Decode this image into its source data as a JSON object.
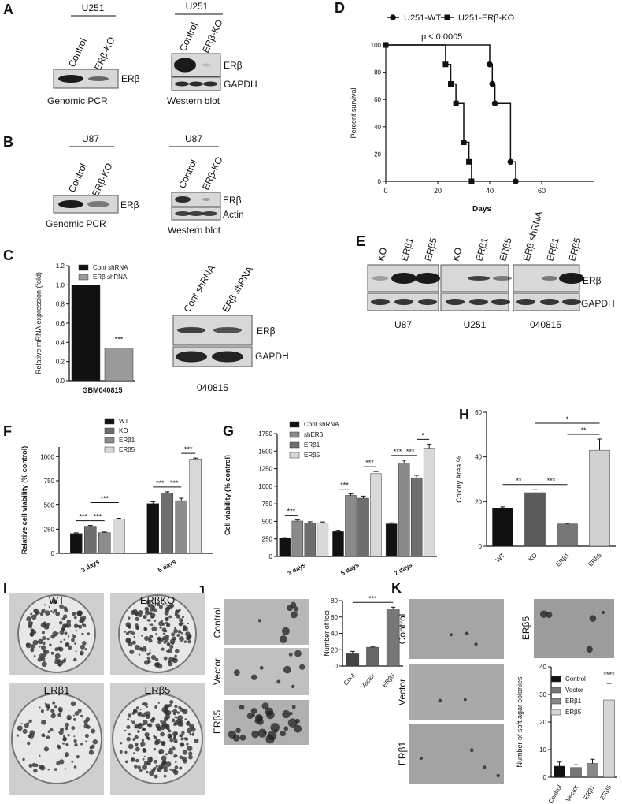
{
  "panels": [
    "A",
    "B",
    "C",
    "D",
    "E",
    "F",
    "G",
    "H",
    "I",
    "J",
    "K"
  ],
  "panel_labels": {
    "A": [
      "U251",
      "Control",
      "ERβ-KO",
      "ERβ",
      "Genomic PCR",
      "U251",
      "Control",
      "ERβ-KO",
      "ERβ",
      "GAPDH",
      "Western blot"
    ],
    "B": [
      "U87",
      "Control",
      "ERβ-KO",
      "ERβ",
      "Genomic PCR",
      "U87",
      "Control",
      "ERβ-KO",
      "ERβ",
      "Actin",
      "Western blot"
    ],
    "C": [
      "Cont shRNA",
      "ERβ shRNA",
      "ERβ",
      "GAPDH",
      "040815"
    ],
    "E": [
      "KO",
      "ERβ1",
      "ERβ5",
      "KO",
      "ERβ1",
      "ERβ5",
      "ERβ shRNA",
      "ERβ1",
      "ERβ5",
      "ERβ",
      "GAPDH",
      "U87",
      "U251",
      "040815"
    ],
    "I": [
      "WT",
      "ERβKO",
      "ERβ1",
      "ERβ5"
    ],
    "J": [
      "Control",
      "Vector",
      "ERβ5"
    ],
    "K": [
      "Control",
      "Vector",
      "ERβ1",
      "ERβ5"
    ]
  },
  "chart_data": [
    {
      "type": "bar",
      "categories": [
        null
      ],
      "xlabel": "GBM040815",
      "ylabel": "Relative mRNA expression (fold)",
      "ylim": [
        0,
        1.2
      ],
      "yticks": [
        {
          "value": 0,
          "label": "0.0"
        },
        {
          "value": 0.2,
          "label": "0.2"
        },
        {
          "value": 0.4,
          "label": "0.4"
        },
        {
          "value": 0.6,
          "label": "0.6"
        },
        {
          "value": 0.8,
          "label": "0.8"
        },
        {
          "value": 1.0,
          "label": "1.0"
        },
        {
          "value": 1.2,
          "label": "1.2"
        }
      ],
      "series": [
        {
          "name": "Cont shRNA",
          "color": "#111111",
          "values": [
            1.0
          ]
        },
        {
          "name": "ERβ shRNA",
          "color": "#9a9a9a",
          "values": [
            0.34
          ]
        }
      ],
      "significance": [
        "***"
      ]
    },
    {
      "type": "line",
      "step": true,
      "xlabel": "Days",
      "ylabel": "Percent survival",
      "annotation": "p < 0.0005",
      "xlim": [
        0,
        80
      ],
      "xticks": [
        0,
        20,
        40,
        60
      ],
      "ylim": [
        0,
        100
      ],
      "yticks": [
        0,
        20,
        40,
        60,
        80,
        100
      ],
      "series": [
        {
          "name": "U251-WT",
          "color": "#111111",
          "marker": "circle",
          "x": [
            0,
            40,
            41,
            42,
            48,
            50
          ],
          "values": [
            100,
            85.7,
            71.4,
            57.1,
            14.3,
            0
          ]
        },
        {
          "name": "U251-ERβ-KO",
          "color": "#111111",
          "marker": "square",
          "x": [
            0,
            23,
            25,
            27,
            30,
            32,
            33
          ],
          "values": [
            100,
            85.7,
            71.4,
            57.1,
            28.6,
            14.3,
            0
          ]
        }
      ]
    },
    {
      "type": "bar",
      "categories": [
        "3 days",
        "5 days"
      ],
      "ylabel": "Relative cell viability (% control)",
      "ylim": [
        0,
        1100
      ],
      "yticks": [
        0,
        250,
        500,
        750,
        1000
      ],
      "series": [
        {
          "name": "WT",
          "color": "#111111",
          "values": [
            205,
            515
          ],
          "errors": [
            8,
            20
          ]
        },
        {
          "name": "KO",
          "color": "#6e6e6e",
          "values": [
            280,
            625
          ],
          "errors": [
            8,
            12
          ]
        },
        {
          "name": "ERβ1",
          "color": "#8c8c8c",
          "values": [
            215,
            545
          ],
          "errors": [
            6,
            25
          ]
        },
        {
          "name": "ERβ5",
          "color": "#d9d9d9",
          "values": [
            355,
            975
          ],
          "errors": [
            8,
            10
          ]
        }
      ],
      "significance": [
        "***",
        "***",
        "***",
        "***",
        "***",
        "***"
      ]
    },
    {
      "type": "bar",
      "categories": [
        "3 days",
        "5 days",
        "7 days"
      ],
      "ylabel": "Cell viability (% control)",
      "ylim": [
        0,
        1750
      ],
      "yticks": [
        0,
        250,
        500,
        750,
        1000,
        1250,
        1500,
        1750
      ],
      "series": [
        {
          "name": "Cont shRNA",
          "color": "#111111",
          "values": [
            260,
            355,
            465
          ],
          "errors": [
            8,
            12,
            15
          ]
        },
        {
          "name": "shERβ",
          "color": "#8a8a8a",
          "values": [
            505,
            870,
            1330
          ],
          "errors": [
            15,
            20,
            40
          ]
        },
        {
          "name": "ERβ1",
          "color": "#6e6e6e",
          "values": [
            480,
            830,
            1120
          ],
          "errors": [
            15,
            30,
            35
          ]
        },
        {
          "name": "ERβ5",
          "color": "#d9d9d9",
          "values": [
            480,
            1180,
            1540
          ],
          "errors": [
            12,
            30,
            60
          ]
        }
      ],
      "significance": [
        "***",
        "***",
        "***",
        "***",
        "***",
        "*"
      ]
    },
    {
      "type": "bar",
      "categories": [
        "WT",
        "KO",
        "ERβ1",
        "ERβ5"
      ],
      "ylabel": "Colony Area %",
      "ylim": [
        0,
        60
      ],
      "yticks": [
        0,
        20,
        40,
        60
      ],
      "values": [
        17,
        24,
        10,
        43
      ],
      "errors": [
        0.7,
        1.5,
        0.3,
        5
      ],
      "colors": [
        "#111111",
        "#5a5a5a",
        "#777777",
        "#d0d0d0"
      ],
      "significance": [
        "**",
        "***",
        "**",
        "*"
      ]
    },
    {
      "type": "bar",
      "categories": [
        "Cont",
        "Vector",
        "ERβ5"
      ],
      "ylabel": "Number of foci",
      "ylim": [
        0,
        80
      ],
      "yticks": [
        0,
        20,
        40,
        60,
        80
      ],
      "values": [
        15,
        23,
        70
      ],
      "errors": [
        3,
        1,
        2
      ],
      "colors": [
        "#444444",
        "#666666",
        "#777777"
      ],
      "significance": [
        "***"
      ]
    },
    {
      "type": "bar",
      "categories": [
        "Control",
        "Vector",
        "ERβ1",
        "ERβ5"
      ],
      "ylabel": "Number of soft agar colonies",
      "ylim": [
        0,
        40
      ],
      "yticks": [
        0,
        10,
        20,
        30,
        40
      ],
      "legend": true,
      "values": [
        4,
        3.5,
        5,
        28
      ],
      "errors": [
        1.5,
        1,
        1.5,
        6
      ],
      "colors": [
        "#111111",
        "#777777",
        "#888888",
        "#d5d5d5"
      ],
      "significance": [
        "****"
      ]
    }
  ]
}
